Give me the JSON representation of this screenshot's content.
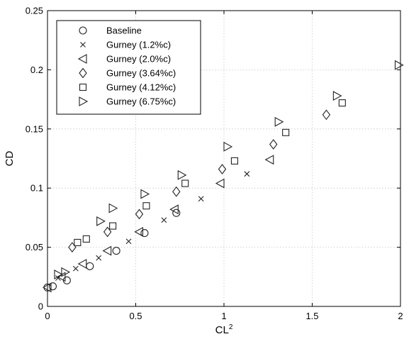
{
  "chart_data": {
    "type": "scatter",
    "xlabel": "CL",
    "xlabel_superscript": "2",
    "ylabel": "CD",
    "xlim": [
      0,
      2
    ],
    "ylim": [
      0,
      0.25
    ],
    "xticks": [
      0,
      0.5,
      1,
      1.5,
      2
    ],
    "yticks": [
      0,
      0.05,
      0.1,
      0.15,
      0.2,
      0.25
    ],
    "xtick_labels": [
      "0",
      "0.5",
      "1",
      "1.5",
      "2"
    ],
    "ytick_labels": [
      "0",
      "0.05",
      "0.1",
      "0.15",
      "0.2",
      "0.25"
    ],
    "grid": true,
    "legend_position": "top-left",
    "series": [
      {
        "name": "Baseline",
        "marker": "circle",
        "points": [
          [
            0.0,
            0.016
          ],
          [
            0.03,
            0.017
          ],
          [
            0.11,
            0.022
          ],
          [
            0.24,
            0.034
          ],
          [
            0.39,
            0.047
          ],
          [
            0.55,
            0.062
          ],
          [
            0.73,
            0.079
          ]
        ]
      },
      {
        "name": "Gurney (1.2%c)",
        "marker": "x",
        "points": [
          [
            0.06,
            0.024
          ],
          [
            0.16,
            0.032
          ],
          [
            0.29,
            0.041
          ],
          [
            0.46,
            0.055
          ],
          [
            0.66,
            0.073
          ],
          [
            0.87,
            0.091
          ],
          [
            1.13,
            0.112
          ]
        ]
      },
      {
        "name": "Gurney (2.0%c)",
        "marker": "triangle-left",
        "points": [
          [
            0.0,
            0.016
          ],
          [
            0.08,
            0.025
          ],
          [
            0.2,
            0.036
          ],
          [
            0.34,
            0.047
          ],
          [
            0.52,
            0.063
          ],
          [
            0.72,
            0.082
          ],
          [
            0.98,
            0.104
          ],
          [
            1.26,
            0.124
          ]
        ]
      },
      {
        "name": "Gurney (3.64%c)",
        "marker": "diamond",
        "points": [
          [
            0.14,
            0.05
          ],
          [
            0.34,
            0.063
          ],
          [
            0.52,
            0.078
          ],
          [
            0.73,
            0.097
          ],
          [
            0.99,
            0.116
          ],
          [
            1.28,
            0.137
          ],
          [
            1.58,
            0.162
          ]
        ]
      },
      {
        "name": "Gurney (4.12%c)",
        "marker": "square",
        "points": [
          [
            0.17,
            0.054
          ],
          [
            0.22,
            0.057
          ],
          [
            0.37,
            0.068
          ],
          [
            0.56,
            0.085
          ],
          [
            0.78,
            0.104
          ],
          [
            1.06,
            0.123
          ],
          [
            1.35,
            0.147
          ],
          [
            1.67,
            0.172
          ]
        ]
      },
      {
        "name": "Gurney (6.75%c)",
        "marker": "triangle-right",
        "points": [
          [
            0.06,
            0.027
          ],
          [
            0.1,
            0.029
          ],
          [
            0.3,
            0.072
          ],
          [
            0.37,
            0.083
          ],
          [
            0.55,
            0.095
          ],
          [
            0.76,
            0.111
          ],
          [
            1.02,
            0.135
          ],
          [
            1.31,
            0.156
          ],
          [
            1.64,
            0.178
          ],
          [
            1.99,
            0.204
          ]
        ]
      }
    ]
  }
}
